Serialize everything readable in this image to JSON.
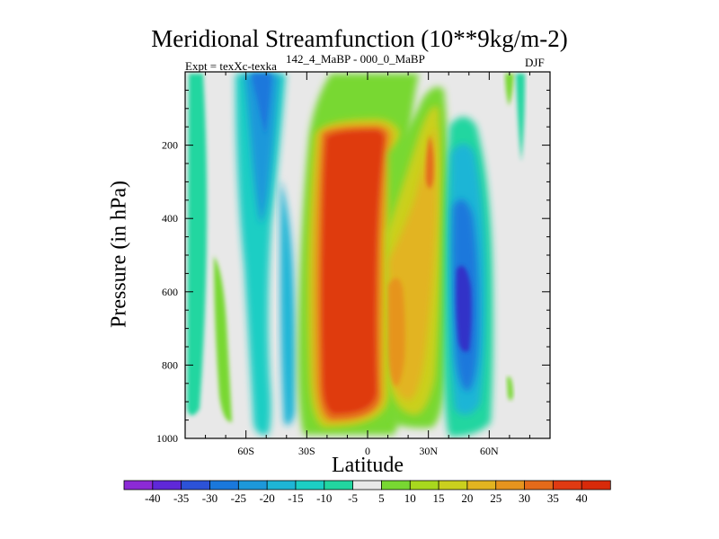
{
  "chart_data": {
    "type": "heatmap",
    "title": "Meridional Streamfunction (10**9kg/m-2)",
    "left_label": "Expt = texXc-texka",
    "center_label": "142_4_MaBP - 000_0_MaBP",
    "right_label": "DJF",
    "xlabel": "Latitude",
    "ylabel": "Pressure (in hPa)",
    "xlim": [
      -90,
      90
    ],
    "ylim": [
      1000,
      0
    ],
    "x_ticks": [
      {
        "value": -60,
        "label": "60S"
      },
      {
        "value": -30,
        "label": "30S"
      },
      {
        "value": 0,
        "label": "0"
      },
      {
        "value": 30,
        "label": "30N"
      },
      {
        "value": 60,
        "label": "60N"
      }
    ],
    "y_ticks": [
      {
        "value": 200,
        "label": "200"
      },
      {
        "value": 400,
        "label": "400"
      },
      {
        "value": 600,
        "label": "600"
      },
      {
        "value": 800,
        "label": "800"
      },
      {
        "value": 1000,
        "label": "1000"
      }
    ],
    "colorbar": {
      "labels": [
        "-40",
        "-35",
        "-30",
        "-25",
        "-20",
        "-15",
        "-10",
        "-5",
        "5",
        "10",
        "15",
        "20",
        "25",
        "30",
        "35",
        "40"
      ],
      "colors": [
        "#8c2ad6",
        "#5f28d8",
        "#2c52d8",
        "#1a78dc",
        "#1d98da",
        "#1eb5d6",
        "#1ccec4",
        "#22d6a0",
        "#e8e8e8",
        "#78d832",
        "#a8d81e",
        "#cad01e",
        "#e2b420",
        "#e6941e",
        "#e46a1a",
        "#e03a12",
        "#d82a0a"
      ]
    },
    "features": [
      {
        "name": "southern-subpolar-cell",
        "lat_range": [
          -70,
          -52
        ],
        "p_range": [
          30,
          980
        ],
        "value": -25
      },
      {
        "name": "southern-midlat-cell",
        "lat_range": [
          -57,
          -40
        ],
        "p_range": [
          30,
          990
        ],
        "value": -10
      },
      {
        "name": "hadley-cell-core",
        "lat_range": [
          -20,
          8
        ],
        "p_range": [
          160,
          960
        ],
        "value": 40
      },
      {
        "name": "northern-ferrel-core",
        "lat_range": [
          38,
          52
        ],
        "p_range": [
          80,
          980
        ],
        "value": -35
      },
      {
        "name": "subtropical-north-cell",
        "lat_range": [
          8,
          35
        ],
        "p_range": [
          50,
          940
        ],
        "value": 25
      }
    ]
  }
}
